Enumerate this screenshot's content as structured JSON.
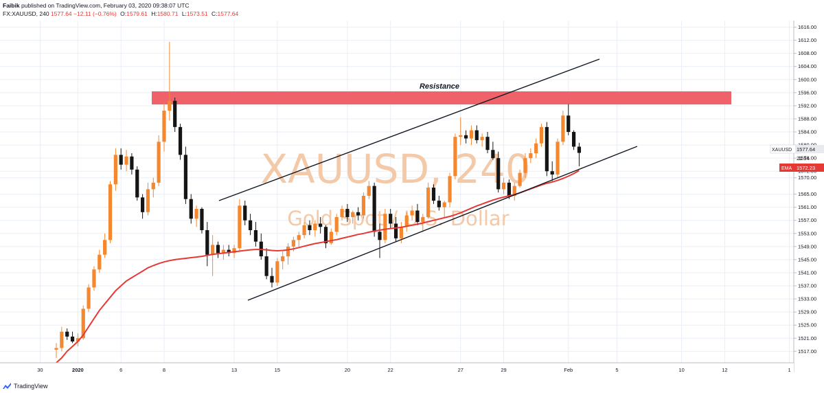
{
  "header": {
    "author": "Faibik",
    "published_text": "published on TradingView.com, February 03, 2020 09:38:07 UTC",
    "symbol_line": "FX:XAUUSD, 240",
    "last": "1577.64",
    "change": "−12.11 (−0.76%)",
    "open_label": "O:",
    "open": "1579.61",
    "high_label": "H:",
    "high": "1580.71",
    "low_label": "L:",
    "low": "1573.51",
    "close_label": "C:",
    "close": "1577.64"
  },
  "watermark": {
    "symbol": "XAUUSD, 240",
    "description": "Gold Spot / U.S. Dollar"
  },
  "annotations": {
    "resistance_label": "Resistance"
  },
  "price_scale": {
    "symbol_tag": "XAUUSD",
    "symbol_price": "1577.64",
    "countdown": "21:54",
    "ema_tag": "EMA",
    "ema_price": "1572.23"
  },
  "footer": {
    "brand": "TradingView"
  },
  "colors": {
    "up": "#f5872f",
    "down": "#151515",
    "ema": "#e53935",
    "resistance_zone": "#f0626a",
    "grid": "#e9eef7",
    "background": "#ffffff",
    "watermark": "#f3c9a8"
  },
  "chart_data": {
    "type": "candlestick",
    "y_range": [
      1513.5,
      1618
    ],
    "y_ticks": [
      1616,
      1612,
      1608,
      1604,
      1600,
      1596,
      1592,
      1588,
      1584,
      1580,
      1576,
      1572,
      1570,
      1565,
      1561,
      1557,
      1553,
      1549,
      1545,
      1541,
      1537,
      1533,
      1529,
      1525,
      1521,
      1517
    ],
    "x_ticks": [
      "30",
      "2020",
      "6",
      "8",
      "13",
      "15",
      "20",
      "22",
      "27",
      "29",
      "Feb",
      "5",
      "10",
      "12",
      "1"
    ],
    "ohlc": [
      [
        1517.5,
        1519.5,
        1515.0,
        1518.0
      ],
      [
        1518.0,
        1524.5,
        1517.0,
        1523.0
      ],
      [
        1523.0,
        1524.0,
        1520.5,
        1521.5
      ],
      [
        1521.5,
        1523.0,
        1519.5,
        1520.0
      ],
      [
        1520.0,
        1522.5,
        1518.5,
        1521.0
      ],
      [
        1521.0,
        1531.0,
        1520.5,
        1530.0
      ],
      [
        1530.0,
        1537.5,
        1529.0,
        1536.5
      ],
      [
        1536.5,
        1543.0,
        1535.5,
        1542.0
      ],
      [
        1542.0,
        1548.0,
        1541.0,
        1546.5
      ],
      [
        1546.5,
        1553.0,
        1545.5,
        1551.0
      ],
      [
        1551.0,
        1569.0,
        1550.0,
        1568.0
      ],
      [
        1568.0,
        1579.0,
        1566.0,
        1577.0
      ],
      [
        1577.0,
        1579.0,
        1572.5,
        1574.0
      ],
      [
        1574.0,
        1578.5,
        1572.0,
        1576.5
      ],
      [
        1576.5,
        1577.5,
        1571.0,
        1572.5
      ],
      [
        1572.5,
        1573.5,
        1563.0,
        1564.0
      ],
      [
        1564.0,
        1565.0,
        1557.5,
        1559.5
      ],
      [
        1559.5,
        1568.5,
        1558.5,
        1566.5
      ],
      [
        1566.5,
        1570.0,
        1564.0,
        1568.5
      ],
      [
        1568.5,
        1583.0,
        1567.5,
        1581.0
      ],
      [
        1581.0,
        1593.0,
        1578.0,
        1590.5
      ],
      [
        1590.5,
        1611.5,
        1587.5,
        1593.5
      ],
      [
        1593.5,
        1594.5,
        1584.0,
        1585.5
      ],
      [
        1585.5,
        1586.5,
        1575.5,
        1577.0
      ],
      [
        1577.0,
        1579.5,
        1562.0,
        1563.5
      ],
      [
        1563.5,
        1565.0,
        1556.0,
        1557.5
      ],
      [
        1557.5,
        1561.5,
        1555.0,
        1560.5
      ],
      [
        1560.5,
        1561.0,
        1553.0,
        1554.0
      ],
      [
        1554.0,
        1556.5,
        1543.0,
        1546.5
      ],
      [
        1546.5,
        1552.5,
        1540.0,
        1549.5
      ],
      [
        1549.5,
        1550.5,
        1545.5,
        1547.0
      ],
      [
        1547.0,
        1549.5,
        1545.0,
        1548.0
      ],
      [
        1548.0,
        1549.5,
        1546.0,
        1547.0
      ],
      [
        1547.0,
        1549.5,
        1545.5,
        1548.5
      ],
      [
        1548.5,
        1563.5,
        1547.5,
        1561.5
      ],
      [
        1561.5,
        1563.0,
        1555.5,
        1557.0
      ],
      [
        1557.0,
        1559.0,
        1552.5,
        1554.0
      ],
      [
        1554.0,
        1556.5,
        1549.0,
        1550.5
      ],
      [
        1550.5,
        1553.0,
        1545.0,
        1546.0
      ],
      [
        1546.0,
        1548.5,
        1539.0,
        1540.0
      ],
      [
        1540.0,
        1542.5,
        1536.5,
        1538.0
      ],
      [
        1538.0,
        1545.5,
        1537.0,
        1544.5
      ],
      [
        1544.5,
        1547.5,
        1542.0,
        1546.0
      ],
      [
        1546.0,
        1550.0,
        1543.5,
        1549.0
      ],
      [
        1549.0,
        1552.0,
        1547.5,
        1551.0
      ],
      [
        1551.0,
        1553.5,
        1549.0,
        1552.5
      ],
      [
        1552.5,
        1556.5,
        1551.5,
        1555.5
      ],
      [
        1555.5,
        1557.0,
        1552.5,
        1554.0
      ],
      [
        1554.0,
        1557.0,
        1552.0,
        1556.0
      ],
      [
        1556.0,
        1558.0,
        1553.0,
        1555.0
      ],
      [
        1555.0,
        1555.5,
        1548.5,
        1550.0
      ],
      [
        1550.0,
        1554.5,
        1549.5,
        1553.5
      ],
      [
        1553.5,
        1559.0,
        1552.5,
        1558.0
      ],
      [
        1558.0,
        1561.5,
        1557.0,
        1560.5
      ],
      [
        1560.5,
        1562.0,
        1556.5,
        1558.0
      ],
      [
        1558.0,
        1560.0,
        1556.0,
        1559.5
      ],
      [
        1559.5,
        1561.0,
        1557.0,
        1558.5
      ],
      [
        1558.5,
        1565.5,
        1557.5,
        1564.5
      ],
      [
        1564.5,
        1569.0,
        1563.5,
        1567.5
      ],
      [
        1567.5,
        1568.5,
        1552.0,
        1553.5
      ],
      [
        1553.5,
        1556.0,
        1545.5,
        1551.0
      ],
      [
        1551.0,
        1560.5,
        1550.0,
        1559.0
      ],
      [
        1559.0,
        1560.5,
        1554.5,
        1556.0
      ],
      [
        1556.0,
        1558.0,
        1550.5,
        1551.5
      ],
      [
        1551.5,
        1556.5,
        1550.0,
        1555.0
      ],
      [
        1555.0,
        1559.5,
        1553.5,
        1558.5
      ],
      [
        1558.5,
        1561.5,
        1557.0,
        1560.0
      ],
      [
        1560.0,
        1562.0,
        1555.5,
        1556.5
      ],
      [
        1556.5,
        1559.0,
        1553.5,
        1558.0
      ],
      [
        1558.0,
        1568.5,
        1557.5,
        1567.0
      ],
      [
        1567.0,
        1568.0,
        1562.0,
        1563.0
      ],
      [
        1563.0,
        1564.5,
        1560.0,
        1561.0
      ],
      [
        1561.0,
        1563.0,
        1558.0,
        1562.5
      ],
      [
        1562.5,
        1571.5,
        1561.0,
        1570.5
      ],
      [
        1570.5,
        1583.5,
        1569.5,
        1582.5
      ],
      [
        1582.5,
        1588.5,
        1580.0,
        1583.0
      ],
      [
        1583.0,
        1584.5,
        1580.5,
        1582.0
      ],
      [
        1582.0,
        1586.0,
        1580.0,
        1584.5
      ],
      [
        1584.5,
        1586.0,
        1580.5,
        1581.5
      ],
      [
        1581.5,
        1583.5,
        1579.5,
        1582.5
      ],
      [
        1582.5,
        1584.0,
        1577.5,
        1578.5
      ],
      [
        1578.5,
        1581.0,
        1575.5,
        1576.0
      ],
      [
        1576.0,
        1578.0,
        1565.5,
        1566.5
      ],
      [
        1566.5,
        1570.0,
        1565.0,
        1568.5
      ],
      [
        1568.5,
        1569.5,
        1563.5,
        1564.5
      ],
      [
        1564.5,
        1568.5,
        1563.0,
        1567.5
      ],
      [
        1567.5,
        1572.5,
        1567.0,
        1571.5
      ],
      [
        1571.5,
        1577.5,
        1570.0,
        1576.0
      ],
      [
        1576.0,
        1579.0,
        1574.5,
        1577.5
      ],
      [
        1577.5,
        1582.0,
        1576.0,
        1580.5
      ],
      [
        1580.5,
        1586.5,
        1579.5,
        1585.5
      ],
      [
        1585.5,
        1587.0,
        1570.5,
        1572.0
      ],
      [
        1572.0,
        1575.0,
        1569.0,
        1571.0
      ],
      [
        1571.0,
        1582.0,
        1570.0,
        1581.0
      ],
      [
        1581.0,
        1590.5,
        1580.0,
        1589.0
      ],
      [
        1589.0,
        1592.5,
        1583.0,
        1584.0
      ],
      [
        1584.0,
        1584.5,
        1578.5,
        1579.5
      ],
      [
        1579.5,
        1580.7,
        1573.5,
        1577.6
      ]
    ],
    "ema": [
      1513.5,
      1515.0,
      1517.0,
      1518.5,
      1520.0,
      1522.0,
      1524.5,
      1527.0,
      1529.5,
      1531.5,
      1533.5,
      1535.5,
      1537.0,
      1538.5,
      1539.5,
      1540.5,
      1541.5,
      1542.5,
      1543.2,
      1543.8,
      1544.3,
      1544.7,
      1545.0,
      1545.2,
      1545.4,
      1545.6,
      1545.8,
      1546.0,
      1546.3,
      1546.6,
      1546.8,
      1547.0,
      1547.2,
      1547.4,
      1547.6,
      1547.8,
      1548.0,
      1548.1,
      1548.1,
      1548.0,
      1547.8,
      1547.7,
      1547.8,
      1548.0,
      1548.3,
      1548.7,
      1549.1,
      1549.5,
      1549.9,
      1550.2,
      1550.5,
      1550.8,
      1551.1,
      1551.5,
      1551.9,
      1552.3,
      1552.7,
      1553.0,
      1553.4,
      1553.7,
      1554.0,
      1554.3,
      1554.5,
      1554.7,
      1554.9,
      1555.2,
      1555.5,
      1555.8,
      1556.2,
      1556.6,
      1557.0,
      1557.4,
      1557.8,
      1558.2,
      1558.7,
      1559.3,
      1560.0,
      1560.7,
      1561.4,
      1562.0,
      1562.6,
      1563.2,
      1563.7,
      1564.1,
      1564.5,
      1564.9,
      1565.4,
      1566.0,
      1566.6,
      1567.2,
      1567.8,
      1568.3,
      1568.7,
      1569.2,
      1569.8,
      1570.5,
      1571.3,
      1572.2
    ]
  }
}
